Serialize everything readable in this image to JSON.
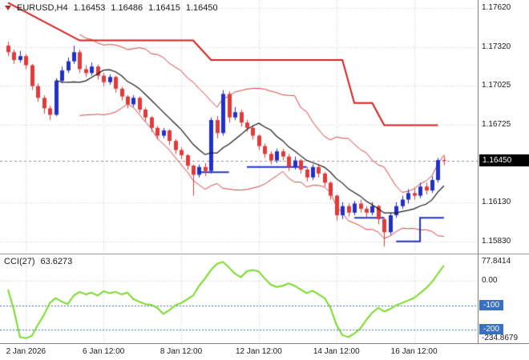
{
  "header": {
    "symbol": "EURUSD,H4",
    "open": "1.16453",
    "high": "1.16486",
    "low": "1.16415",
    "close": "1.16450"
  },
  "colors": {
    "background": "#ffffff",
    "grid": "#c8c8c8",
    "bull": "#2330c8",
    "bear": "#e13a3a",
    "ma": "#1a1a1a",
    "band": "#d84040",
    "resistance": "#d02020",
    "support": "#2330c8",
    "cci_line": "#7bd82b",
    "level": "#3a70c0",
    "price_box_bg": "#000000",
    "price_box_text": "#ffffff",
    "axis_text": "#1a1a1a",
    "border": "#9a9a9a"
  },
  "chart_data": {
    "type": "candlestick",
    "title": "EURUSD,H4",
    "timeframe": "H4",
    "x_axis": {
      "tick_indices": [
        3,
        16,
        29,
        42,
        55,
        68
      ],
      "tick_labels": [
        "2 Jan 2026",
        "6 Jan 12:00",
        "8 Jan 12:00",
        "12 Jan 12:00",
        "14 Jan 12:00",
        "16 Jan 12:00"
      ]
    },
    "price_axis": {
      "tick_values": [
        1.1762,
        1.1732,
        1.17025,
        1.16725,
        1.1613,
        1.1583
      ],
      "current_price": 1.1645,
      "ylim": [
        1.1573,
        1.1768
      ]
    },
    "candles": [
      [
        1.1733,
        1.1736,
        1.1725,
        1.1728
      ],
      [
        1.1728,
        1.173,
        1.1719,
        1.1722
      ],
      [
        1.1722,
        1.1729,
        1.172,
        1.1725
      ],
      [
        1.1725,
        1.17265,
        1.1715,
        1.1718
      ],
      [
        1.1718,
        1.1719,
        1.1699,
        1.1702
      ],
      [
        1.1702,
        1.1704,
        1.169,
        1.1693
      ],
      [
        1.1693,
        1.1695,
        1.1681,
        1.1685
      ],
      [
        1.1685,
        1.1687,
        1.1676,
        1.168
      ],
      [
        1.168,
        1.1708,
        1.1679,
        1.1706
      ],
      [
        1.1706,
        1.1717,
        1.1704,
        1.1714
      ],
      [
        1.1714,
        1.1724,
        1.1712,
        1.1721
      ],
      [
        1.1721,
        1.1733,
        1.1719,
        1.1728
      ],
      [
        1.1728,
        1.173,
        1.1712,
        1.1715
      ],
      [
        1.1715,
        1.1718,
        1.1709,
        1.1712
      ],
      [
        1.1712,
        1.172,
        1.171,
        1.1717
      ],
      [
        1.1717,
        1.17185,
        1.1707,
        1.171
      ],
      [
        1.171,
        1.1712,
        1.1702,
        1.1705
      ],
      [
        1.1705,
        1.1711,
        1.1703,
        1.1709
      ],
      [
        1.1709,
        1.171,
        1.1697,
        1.17
      ],
      [
        1.17,
        1.17015,
        1.1691,
        1.1694
      ],
      [
        1.1694,
        1.1695,
        1.1685,
        1.1688
      ],
      [
        1.1688,
        1.1695,
        1.1686,
        1.1693
      ],
      [
        1.1693,
        1.1694,
        1.16815,
        1.1684
      ],
      [
        1.1684,
        1.16855,
        1.1675,
        1.1678
      ],
      [
        1.1678,
        1.1679,
        1.1667,
        1.167
      ],
      [
        1.167,
        1.16715,
        1.1661,
        1.1664
      ],
      [
        1.1664,
        1.167,
        1.1662,
        1.1668
      ],
      [
        1.1668,
        1.1669,
        1.1657,
        1.166
      ],
      [
        1.166,
        1.16615,
        1.165,
        1.1653
      ],
      [
        1.1653,
        1.1655,
        1.1646,
        1.1649
      ],
      [
        1.1649,
        1.165,
        1.1638,
        1.1641
      ],
      [
        1.1641,
        1.1642,
        1.1618,
        1.1634
      ],
      [
        1.1634,
        1.1642,
        1.1632,
        1.164
      ],
      [
        1.164,
        1.1643,
        1.1633,
        1.1637
      ],
      [
        1.1637,
        1.1678,
        1.1635,
        1.1676
      ],
      [
        1.1676,
        1.1679,
        1.1662,
        1.1666
      ],
      [
        1.1666,
        1.1699,
        1.1664,
        1.1696
      ],
      [
        1.1696,
        1.1698,
        1.1674,
        1.1678
      ],
      [
        1.1678,
        1.1686,
        1.1676,
        1.1682
      ],
      [
        1.1682,
        1.1684,
        1.1671,
        1.1674
      ],
      [
        1.1674,
        1.1676,
        1.1667,
        1.167
      ],
      [
        1.167,
        1.1672,
        1.1661,
        1.1664
      ],
      [
        1.1664,
        1.1665,
        1.1653,
        1.1656
      ],
      [
        1.1656,
        1.1658,
        1.1647,
        1.165
      ],
      [
        1.165,
        1.1652,
        1.1642,
        1.1645
      ],
      [
        1.1645,
        1.1654,
        1.1643,
        1.1652
      ],
      [
        1.1652,
        1.1654,
        1.1645,
        1.1648
      ],
      [
        1.1648,
        1.165,
        1.1637,
        1.164
      ],
      [
        1.164,
        1.1648,
        1.1638,
        1.1645
      ],
      [
        1.1645,
        1.1646,
        1.1635,
        1.1638
      ],
      [
        1.1638,
        1.164,
        1.1629,
        1.1632
      ],
      [
        1.1632,
        1.1642,
        1.163,
        1.164
      ],
      [
        1.164,
        1.1642,
        1.1632,
        1.1635
      ],
      [
        1.1635,
        1.1636,
        1.1625,
        1.1628
      ],
      [
        1.1628,
        1.1629,
        1.1615,
        1.1618
      ],
      [
        1.1618,
        1.1619,
        1.1599,
        1.1603
      ],
      [
        1.1603,
        1.1613,
        1.16,
        1.161
      ],
      [
        1.161,
        1.1612,
        1.1602,
        1.1605
      ],
      [
        1.1605,
        1.1614,
        1.1603,
        1.1612
      ],
      [
        1.1612,
        1.1615,
        1.1605,
        1.1608
      ],
      [
        1.1608,
        1.161,
        1.1601,
        1.1605
      ],
      [
        1.1605,
        1.1613,
        1.1603,
        1.161
      ],
      [
        1.161,
        1.1611,
        1.1596,
        1.16
      ],
      [
        1.16,
        1.1601,
        1.1579,
        1.159
      ],
      [
        1.159,
        1.1605,
        1.1588,
        1.1603
      ],
      [
        1.1603,
        1.1613,
        1.1601,
        1.161
      ],
      [
        1.161,
        1.1618,
        1.1608,
        1.1615
      ],
      [
        1.1615,
        1.1623,
        1.1612,
        1.162
      ],
      [
        1.162,
        1.1624,
        1.1615,
        1.1618
      ],
      [
        1.1618,
        1.1628,
        1.1616,
        1.1625
      ],
      [
        1.1625,
        1.1628,
        1.1619,
        1.1622
      ],
      [
        1.1622,
        1.1633,
        1.162,
        1.163
      ],
      [
        1.163,
        1.1647,
        1.1628,
        1.16453
      ],
      [
        1.16453,
        1.16486,
        1.16415,
        1.1645
      ]
    ],
    "overlays": {
      "ma_period": 9,
      "band_period": 13,
      "band_deviation": 2,
      "resistance_polylines": [
        [
          [
            0,
            1.1766
          ],
          [
            12,
            1.1737
          ],
          [
            31,
            1.1737
          ],
          [
            34,
            1.1722
          ],
          [
            56,
            1.1722
          ],
          [
            58,
            1.1689
          ],
          [
            61,
            1.1689
          ],
          [
            63,
            1.1672
          ],
          [
            72,
            1.1672
          ]
        ]
      ],
      "support_polylines": [
        [
          [
            32,
            1.1636
          ],
          [
            37,
            1.1636
          ]
        ],
        [
          [
            40,
            1.164
          ],
          [
            50,
            1.164
          ]
        ],
        [
          [
            58,
            1.1601
          ],
          [
            63,
            1.1601
          ]
        ],
        [
          [
            65,
            1.1583
          ],
          [
            69,
            1.1583
          ],
          [
            69,
            1.1601
          ],
          [
            73,
            1.1601
          ]
        ]
      ]
    },
    "indicator": {
      "name": "CCI",
      "period": 27,
      "label": "CCI(27)",
      "value": 63.6273,
      "value_text": "63.6273",
      "ylim": [
        -255,
        102
      ],
      "zero_line": 0,
      "levels": [
        -100,
        -200
      ],
      "axis_ticks": [
        {
          "value": 77.8414,
          "text": "77.8414",
          "boxed": false
        },
        {
          "value": 0,
          "text": "0.00",
          "boxed": false
        },
        {
          "value": -100,
          "text": "-100",
          "boxed": true
        },
        {
          "value": -200,
          "text": "-200",
          "boxed": true
        },
        {
          "value": -234.8679,
          "text": "-234.8679",
          "boxed": false
        }
      ],
      "values": [
        -35,
        -120,
        -230,
        -234.8679,
        -225,
        -180,
        -140,
        -90,
        -70,
        -85,
        -95,
        -60,
        -45,
        -55,
        -48,
        -60,
        -42,
        -50,
        -45,
        -55,
        -48,
        -75,
        -85,
        -95,
        -98,
        -110,
        -135,
        -120,
        -100,
        -90,
        -75,
        -60,
        -20,
        10,
        45,
        70,
        77.8414,
        55,
        30,
        15,
        40,
        45,
        38,
        10,
        -15,
        -25,
        -20,
        -10,
        -20,
        -35,
        -50,
        -40,
        -55,
        -70,
        -110,
        -180,
        -222,
        -230,
        -215,
        -195,
        -160,
        -130,
        -110,
        -125,
        -115,
        -100,
        -90,
        -80,
        -70,
        -50,
        -30,
        -5,
        30,
        63.6273
      ]
    }
  }
}
